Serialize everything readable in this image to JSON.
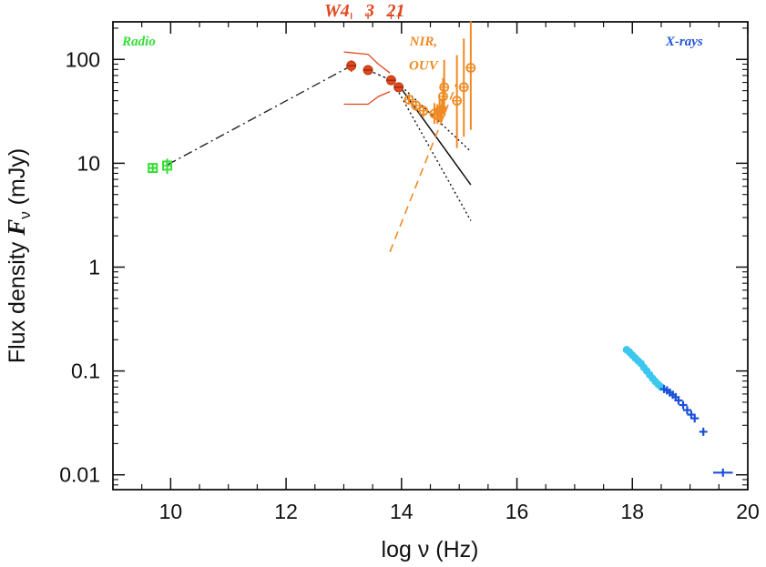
{
  "chart_data": {
    "type": "scatter",
    "title": "",
    "xlabel": "log ν (Hz)",
    "ylabel": "Flux density Fν (mJy)",
    "ylabel_parts": {
      "pre": "Flux density ",
      "sym": "F",
      "sub": "ν",
      "post": " (mJy)"
    },
    "xlim": [
      9,
      20
    ],
    "ylim": [
      0.0072,
      230
    ],
    "yscale": "log",
    "grid": false,
    "x_ticks": [
      {
        "value": 10,
        "label": "10"
      },
      {
        "value": 12,
        "label": "12"
      },
      {
        "value": 14,
        "label": "14"
      },
      {
        "value": 16,
        "label": "16"
      },
      {
        "value": 18,
        "label": "18"
      },
      {
        "value": 20,
        "label": "20"
      }
    ],
    "y_ticks": [
      {
        "value": 100,
        "label": "100"
      },
      {
        "value": 10,
        "label": "10"
      },
      {
        "value": 1,
        "label": "1"
      },
      {
        "value": 0.1,
        "label": "0.1"
      },
      {
        "value": 0.01,
        "label": "0.01"
      }
    ],
    "band_labels": [
      {
        "text": "Radio",
        "x": 9.45,
        "y": 150,
        "color": "#33dd33"
      },
      {
        "text": "X-rays",
        "x": 18.9,
        "y": 150,
        "color": "#2255dd"
      },
      {
        "text": "NIR,",
        "x": 14.38,
        "y": 150,
        "color": "#f08a24"
      },
      {
        "text": "OUV",
        "x": 14.38,
        "y": 88,
        "color": "#f08a24"
      },
      {
        "text": "W4",
        "x": 12.88,
        "y": 390,
        "color": "#e04820"
      },
      {
        "text": "3",
        "x": 13.45,
        "y": 390,
        "color": "#e04820"
      },
      {
        "text": "21",
        "x": 13.9,
        "y": 390,
        "color": "#e04820"
      }
    ],
    "wise_ticks": [
      13.13,
      13.42,
      13.82,
      13.95
    ],
    "series": [
      {
        "name": "Radio",
        "color": "#33dd33",
        "points": [
          {
            "x": 9.69,
            "y": 9.0,
            "yerr": 0.7,
            "xerr": 0.08
          },
          {
            "x": 9.94,
            "y": 9.5,
            "yerr": 1.6,
            "xerr": 0.05
          }
        ]
      },
      {
        "name": "WISE",
        "color": "#e04820",
        "points": [
          {
            "x": 13.13,
            "y": 87,
            "yerr": 11
          },
          {
            "x": 13.42,
            "y": 79,
            "yerr": 6
          },
          {
            "x": 13.82,
            "y": 63,
            "yerr": 6
          },
          {
            "x": 13.95,
            "y": 54,
            "yerr": 5
          }
        ]
      },
      {
        "name": "NIR/OUV",
        "color": "#f08a24",
        "points": [
          {
            "x": 14.13,
            "y": 41,
            "yerr_hi": 5,
            "yerr_lo": 4
          },
          {
            "x": 14.25,
            "y": 36,
            "yerr_hi": 4,
            "yerr_lo": 4
          },
          {
            "x": 14.38,
            "y": 32,
            "yerr_hi": 4,
            "yerr_lo": 4
          },
          {
            "x": 14.57,
            "y": 30,
            "yerr_hi": 8,
            "yerr_lo": 6
          },
          {
            "x": 14.62,
            "y": 29,
            "yerr_hi": 8,
            "yerr_lo": 5
          },
          {
            "x": 14.66,
            "y": 32,
            "yerr_hi": 10,
            "yerr_lo": 7
          },
          {
            "x": 14.68,
            "y": 30,
            "yerr_hi": 6,
            "yerr_lo": 5
          },
          {
            "x": 14.7,
            "y": 33,
            "yerr_hi": 9,
            "yerr_lo": 6
          },
          {
            "x": 14.72,
            "y": 44,
            "yerr_hi": 22,
            "yerr_lo": 14
          },
          {
            "x": 14.74,
            "y": 54,
            "yerr_hi": 45,
            "yerr_lo": 24
          },
          {
            "x": 14.96,
            "y": 40,
            "yerr_hi": 70,
            "yerr_lo": 26
          },
          {
            "x": 15.08,
            "y": 54,
            "yerr_hi": 105,
            "yerr_lo": 36
          },
          {
            "x": 15.2,
            "y": 83,
            "yerr_hi": 150,
            "yerr_lo": 62
          }
        ]
      },
      {
        "name": "X-rays",
        "color": "#1a50d8",
        "soft_color": "#3cc8ee",
        "soft": [
          {
            "x": 17.9,
            "y": 0.16
          },
          {
            "x": 17.95,
            "y": 0.152
          },
          {
            "x": 18.0,
            "y": 0.142
          },
          {
            "x": 18.05,
            "y": 0.133
          },
          {
            "x": 18.1,
            "y": 0.125
          },
          {
            "x": 18.15,
            "y": 0.118
          },
          {
            "x": 18.2,
            "y": 0.108
          },
          {
            "x": 18.25,
            "y": 0.1
          },
          {
            "x": 18.3,
            "y": 0.092
          },
          {
            "x": 18.35,
            "y": 0.085
          },
          {
            "x": 18.4,
            "y": 0.079
          },
          {
            "x": 18.45,
            "y": 0.074
          },
          {
            "x": 18.5,
            "y": 0.07
          }
        ],
        "hard": [
          {
            "x": 18.55,
            "y": 0.067
          },
          {
            "x": 18.6,
            "y": 0.065
          },
          {
            "x": 18.65,
            "y": 0.062
          },
          {
            "x": 18.7,
            "y": 0.059
          },
          {
            "x": 18.75,
            "y": 0.056
          },
          {
            "x": 18.8,
            "y": 0.052
          },
          {
            "x": 18.88,
            "y": 0.047
          },
          {
            "x": 18.95,
            "y": 0.042
          },
          {
            "x": 19.02,
            "y": 0.038
          },
          {
            "x": 19.08,
            "y": 0.035
          },
          {
            "x": 19.23,
            "y": 0.026,
            "xerr": 0.07
          },
          {
            "x": 19.57,
            "y": 0.0105,
            "xerr": 0.17
          }
        ]
      }
    ],
    "lines": [
      {
        "name": "radio-to-W4-connector",
        "color": "#222222",
        "dash": "10 4 2 4",
        "width": 1.4,
        "points": [
          [
            9.95,
            9.7
          ],
          [
            13.13,
            87
          ]
        ]
      },
      {
        "name": "W3-to-W1-connector",
        "color": "#222222",
        "dash": "3 3",
        "width": 1.4,
        "points": [
          [
            13.42,
            79
          ],
          [
            13.82,
            63
          ]
        ]
      },
      {
        "name": "synchrotron-fit",
        "color": "#111111",
        "dash": "",
        "width": 1.5,
        "points": [
          [
            14.0,
            52
          ],
          [
            15.2,
            6.2
          ]
        ]
      },
      {
        "name": "fit-upper-bound",
        "color": "#111111",
        "dash": "2 3",
        "width": 1.4,
        "points": [
          [
            14.0,
            55
          ],
          [
            15.2,
            13
          ]
        ]
      },
      {
        "name": "fit-lower-bound",
        "color": "#111111",
        "dash": "2 3",
        "width": 1.4,
        "points": [
          [
            13.88,
            57
          ],
          [
            15.2,
            2.8
          ]
        ]
      },
      {
        "name": "optical-extrapolation",
        "color": "#f08a24",
        "dash": "9 6",
        "width": 1.6,
        "points": [
          [
            13.8,
            1.4
          ],
          [
            14.95,
            58
          ]
        ]
      },
      {
        "name": "wise-upper-envelope",
        "color": "#e04820",
        "dash": "",
        "width": 1.3,
        "points": [
          [
            13.0,
            118
          ],
          [
            13.42,
            112
          ],
          [
            13.6,
            90
          ],
          [
            13.8,
            74
          ]
        ]
      },
      {
        "name": "wise-lower-envelope",
        "color": "#e04820",
        "dash": "",
        "width": 1.3,
        "points": [
          [
            13.0,
            37
          ],
          [
            13.42,
            37
          ],
          [
            13.6,
            44
          ],
          [
            13.8,
            49
          ]
        ]
      }
    ]
  }
}
